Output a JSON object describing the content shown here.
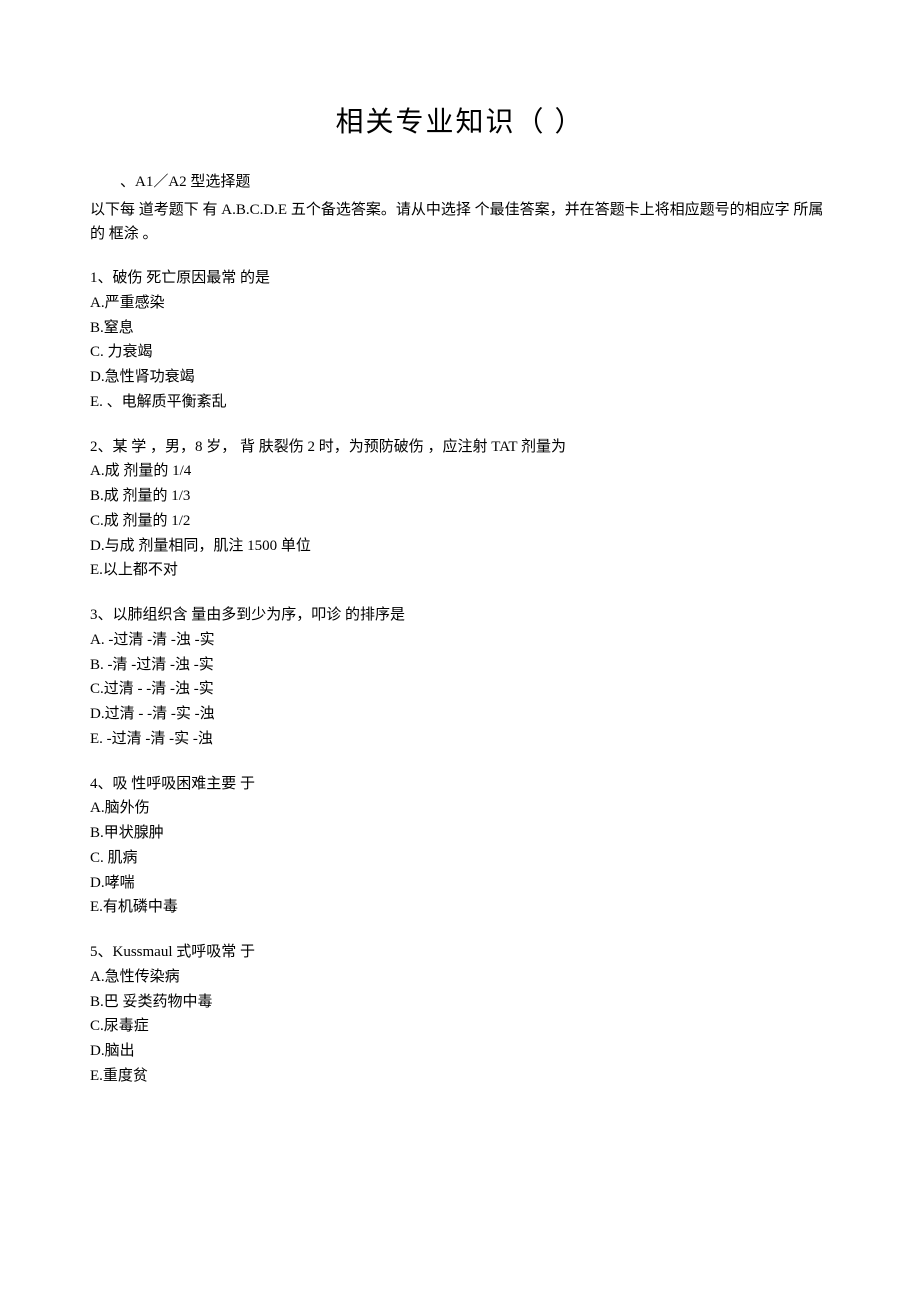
{
  "title": "相关专业知识（ ）",
  "section_header": "、A1／A2 型选择题",
  "instruction": "以下每 道考题下 有 A.B.C.D.E 五个备选答案。请从中选择 个最佳答案，并在答题卡上将相应题号的相应字 所属的 框涂 。",
  "questions": [
    {
      "stem": "1、破伤 死亡原因最常 的是",
      "options": [
        "A.严重感染",
        "B.窒息",
        "C. 力衰竭",
        "D.急性肾功衰竭",
        "E. 、电解质平衡紊乱"
      ]
    },
    {
      "stem": "2、某 学 ，男，8 岁， 背 肤裂伤 2 时，为预防破伤 ，应注射 TAT 剂量为",
      "options": [
        "A.成 剂量的 1/4",
        "B.成 剂量的 1/3",
        "C.成 剂量的 1/2",
        "D.与成 剂量相同，肌注 1500 单位",
        "E.以上都不对"
      ]
    },
    {
      "stem": "3、以肺组织含 量由多到少为序，叩诊 的排序是",
      "options": [
        "A.   -过清 -清 -浊 -实",
        "B.   -清 -过清 -浊 -实",
        "C.过清 -   -清 -浊 -实",
        "D.过清 -   -清 -实 -浊",
        "E.   -过清 -清 -实 -浊"
      ]
    },
    {
      "stem": "4、吸 性呼吸困难主要 于",
      "options": [
        "A.脑外伤",
        "B.甲状腺肿",
        "C. 肌病",
        "D.哮喘",
        "E.有机磷中毒"
      ]
    },
    {
      "stem": "5、Kussmaul 式呼吸常 于",
      "options": [
        "A.急性传染病",
        "B.巴 妥类药物中毒",
        "C.尿毒症",
        "D.脑出",
        "E.重度贫"
      ]
    }
  ]
}
